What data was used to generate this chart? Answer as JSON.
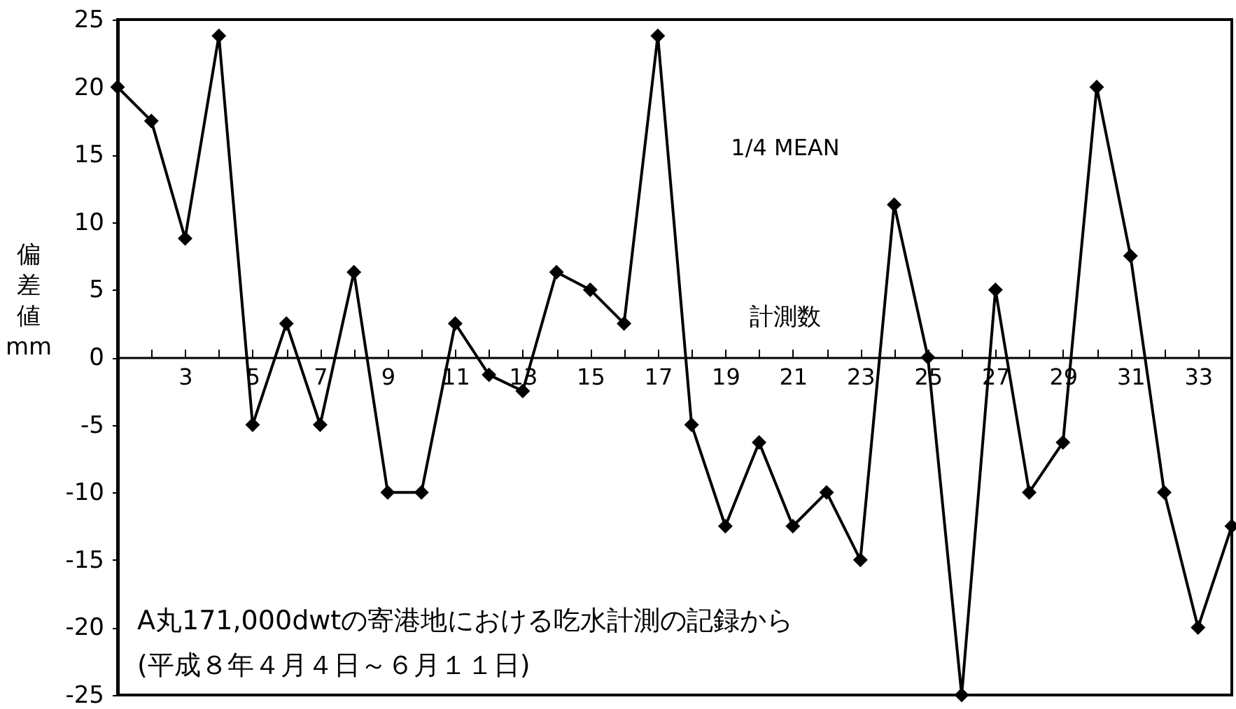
{
  "chart_data": {
    "type": "line",
    "xlabel": "計測数",
    "ylabel": "偏差値 mm",
    "annotations": [
      "1/4 MEAN",
      "A丸171,000dwtの寄港地における吃水計測の記録から",
      "(平成８年４月４日～６月１１日)"
    ],
    "x": [
      1,
      2,
      3,
      4,
      5,
      6,
      7,
      8,
      9,
      10,
      11,
      12,
      13,
      14,
      15,
      16,
      17,
      18,
      19,
      20,
      21,
      22,
      23,
      24,
      25,
      26,
      27,
      28,
      29,
      30,
      31,
      32,
      33,
      34
    ],
    "series": [
      {
        "color": "#000000",
        "values": [
          20,
          17.5,
          8.8,
          23.8,
          -5,
          2.5,
          -5,
          6.3,
          -10,
          -10,
          2.5,
          -1.3,
          -2.5,
          6.3,
          5,
          2.5,
          23.8,
          -5,
          -12.5,
          -6.3,
          -12.5,
          -10,
          -15,
          11.3,
          0,
          -25,
          5,
          -10,
          -6.3,
          20,
          7.5,
          -10,
          -20,
          -12.5
        ]
      }
    ],
    "xlim": [
      1,
      34
    ],
    "xticks": [
      {
        "value": 1,
        "label": null
      },
      {
        "value": 2,
        "label": null
      },
      3,
      {
        "value": 4,
        "label": null
      },
      5,
      {
        "value": 6,
        "label": null
      },
      7,
      {
        "value": 8,
        "label": null
      },
      9,
      {
        "value": 10,
        "label": null
      },
      11,
      {
        "value": 12,
        "label": null
      },
      13,
      {
        "value": 14,
        "label": null
      },
      15,
      {
        "value": 16,
        "label": null
      },
      17,
      {
        "value": 18,
        "label": null
      },
      19,
      {
        "value": 20,
        "label": null
      },
      21,
      {
        "value": 22,
        "label": null
      },
      23,
      {
        "value": 24,
        "label": null
      },
      25,
      {
        "value": 26,
        "label": null
      },
      27,
      {
        "value": 28,
        "label": null
      },
      29,
      {
        "value": 30,
        "label": null
      },
      31,
      {
        "value": 32,
        "label": null
      },
      33,
      {
        "value": 34,
        "label": null
      }
    ],
    "ylim": [
      -25,
      25
    ],
    "yticks": [
      -25,
      -20,
      -15,
      -10,
      -5,
      0,
      5,
      10,
      15,
      20,
      25
    ],
    "grid": false,
    "marker": "diamond",
    "line_style": "solid"
  }
}
